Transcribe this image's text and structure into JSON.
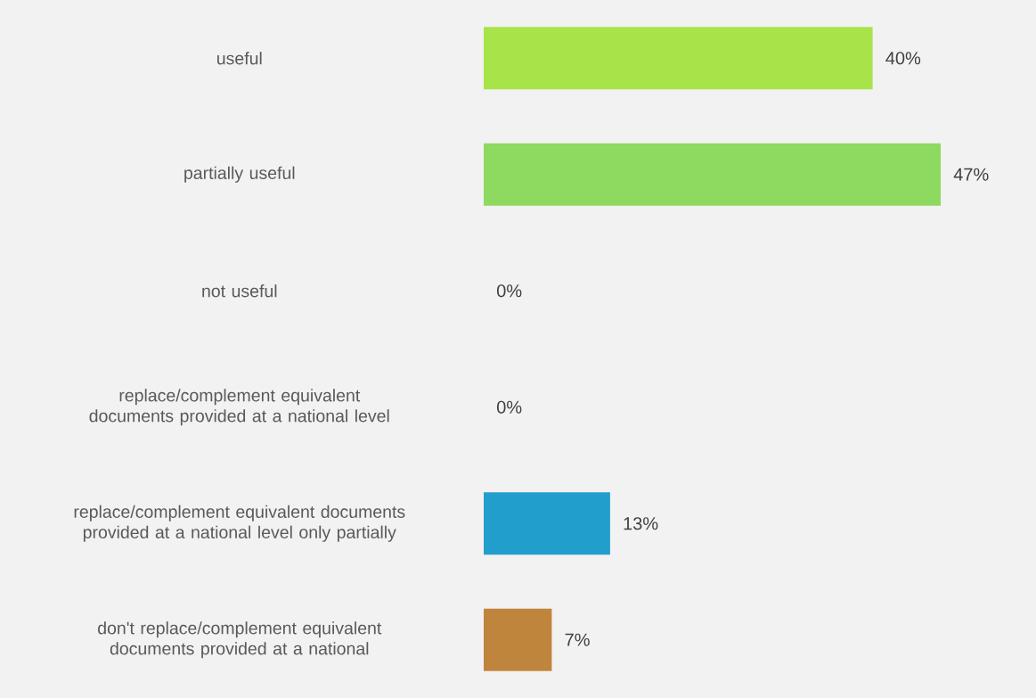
{
  "chart_data": {
    "type": "bar",
    "orientation": "horizontal",
    "categories": [
      "useful",
      "partially useful",
      "not useful",
      "replace/complement equivalent documents provided at a national level",
      "replace/complement equivalent documents provided at a national level only partially",
      "don't replace/complement equivalent documents provided at a national"
    ],
    "values": [
      40,
      47,
      0,
      0,
      13,
      7
    ],
    "value_labels": [
      "40%",
      "47%",
      "0%",
      "0%",
      "13%",
      "7%"
    ],
    "colors": [
      "#a8e34a",
      "#8ed960",
      "#a8e34a",
      "#a8e34a",
      "#229ecd",
      "#c0853d"
    ]
  }
}
